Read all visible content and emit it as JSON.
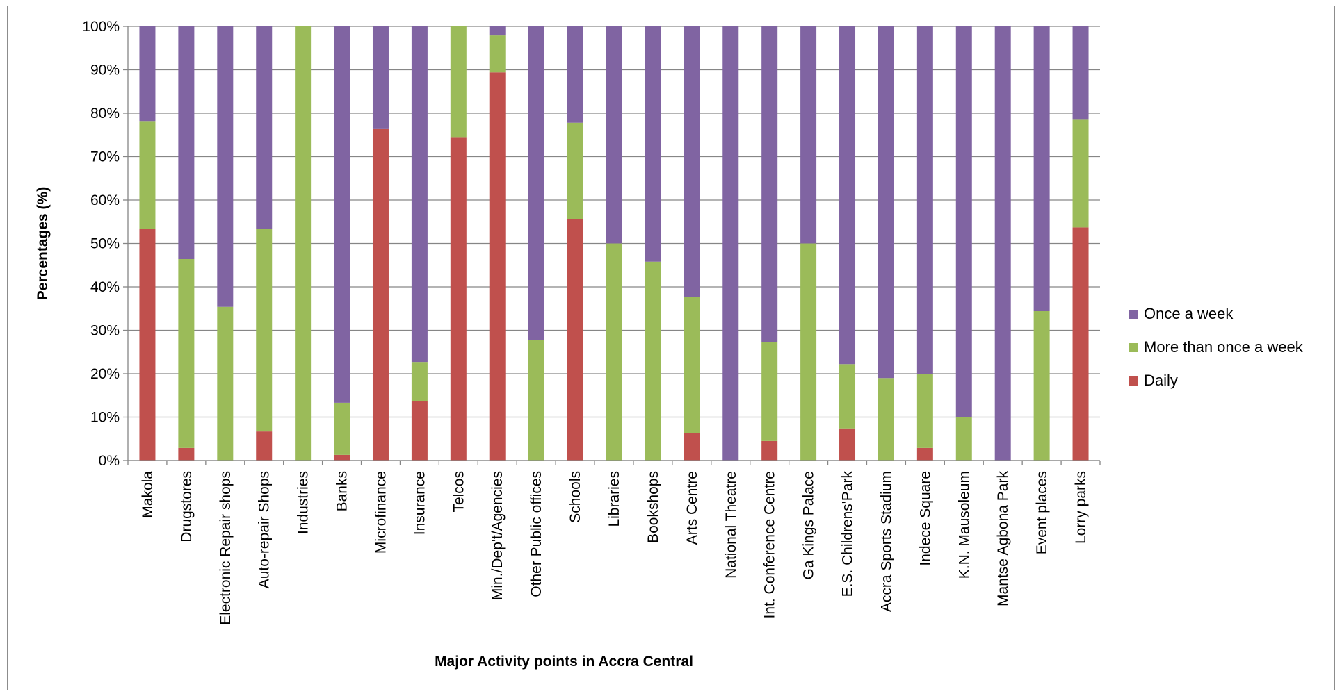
{
  "chart_data": {
    "type": "bar",
    "stacked": true,
    "percent_stacked": true,
    "title": "",
    "xlabel": "Major Activity points in Accra Central",
    "ylabel": "Percentages (%)",
    "ylim": [
      0,
      100
    ],
    "yticks": [
      "0%",
      "10%",
      "20%",
      "30%",
      "40%",
      "50%",
      "60%",
      "70%",
      "80%",
      "90%",
      "100%"
    ],
    "grid": true,
    "legend_position": "right",
    "categories": [
      "Makola",
      "Drugstores",
      "Electronic Repair shops",
      "Auto-repair Shops",
      "Industries",
      "Banks",
      "Microfinance",
      "Insurance",
      "Telcos",
      "Min./Dep't/Agencies",
      "Other Public offices",
      "Schools",
      "Libraries",
      "Bookshops",
      "Arts Centre",
      "National Theatre",
      "Int. Conference Centre",
      "Ga Kings Palace",
      "E.S. Childrens'Park",
      "Accra Sports Stadium",
      "Indece Square",
      "K.N. Mausoleum",
      "Mantse Agbona Park",
      "Event places",
      "Lorry parks"
    ],
    "series": [
      {
        "name": "Daily",
        "color": "#c0504d",
        "values": [
          53.3,
          2.9,
          0,
          6.7,
          0,
          1.3,
          76.5,
          13.6,
          74.5,
          89.4,
          0,
          55.6,
          0,
          0,
          6.3,
          0,
          4.5,
          0,
          7.4,
          0,
          2.9,
          0,
          0,
          0,
          53.7
        ]
      },
      {
        "name": "More than once a week",
        "color": "#9bbb59",
        "values": [
          24.9,
          43.5,
          35.4,
          46.6,
          100,
          12.0,
          0,
          9.1,
          25.5,
          8.5,
          27.8,
          22.2,
          50.0,
          45.8,
          31.3,
          0,
          22.8,
          50.0,
          14.8,
          19.0,
          17.1,
          10.0,
          0,
          34.4,
          24.8
        ]
      },
      {
        "name": "Once a week",
        "color": "#8064a2",
        "values": [
          21.8,
          53.6,
          64.6,
          46.7,
          0,
          86.7,
          23.5,
          77.3,
          0,
          2.1,
          72.2,
          22.2,
          50.0,
          54.2,
          62.4,
          100,
          72.7,
          50.0,
          77.8,
          81.0,
          80.0,
          90.0,
          100,
          65.6,
          21.5
        ]
      }
    ],
    "legend": [
      "Once a week",
      "More than once a week",
      "Daily"
    ]
  }
}
